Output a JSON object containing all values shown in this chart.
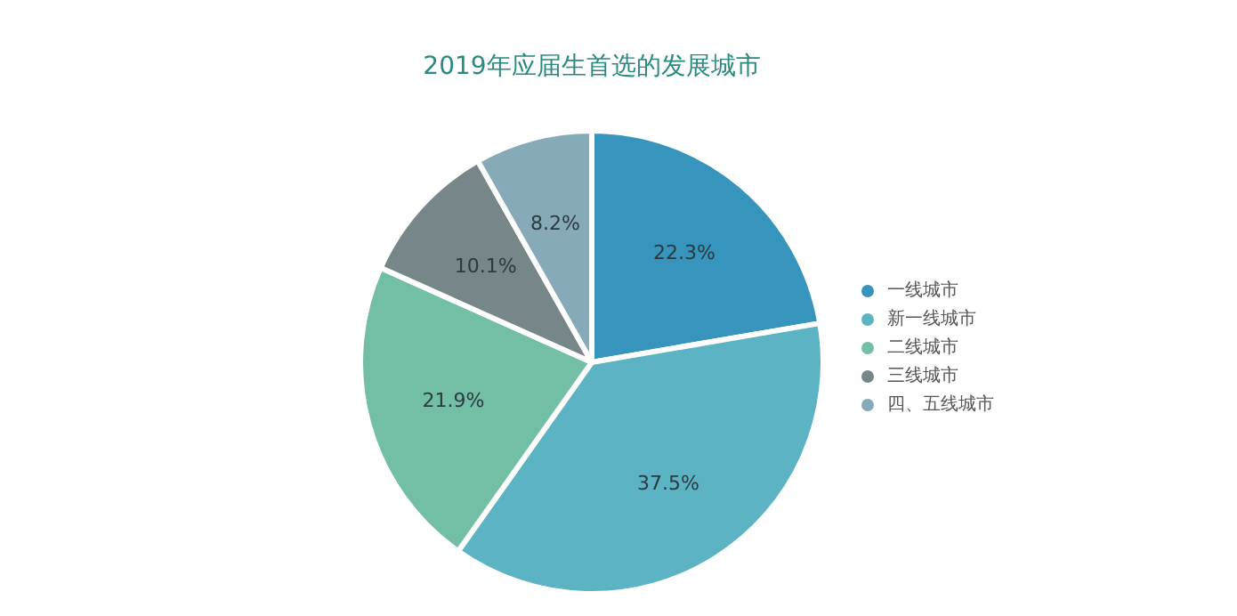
{
  "chart_data": {
    "type": "pie",
    "title": "2019年应届生首选的发展城市",
    "categories": [
      "一线城市",
      "新一线城市",
      "二线城市",
      "三线城市",
      "四、五线城市"
    ],
    "values": [
      22.3,
      37.5,
      21.9,
      10.1,
      8.2
    ],
    "colors": [
      "#3694bd",
      "#5bb3c4",
      "#72bfa5",
      "#768689",
      "#86aab8"
    ],
    "value_labels": [
      "22.3%",
      "37.5%",
      "21.9%",
      "10.1%",
      "8.2%"
    ],
    "legend": "right"
  }
}
